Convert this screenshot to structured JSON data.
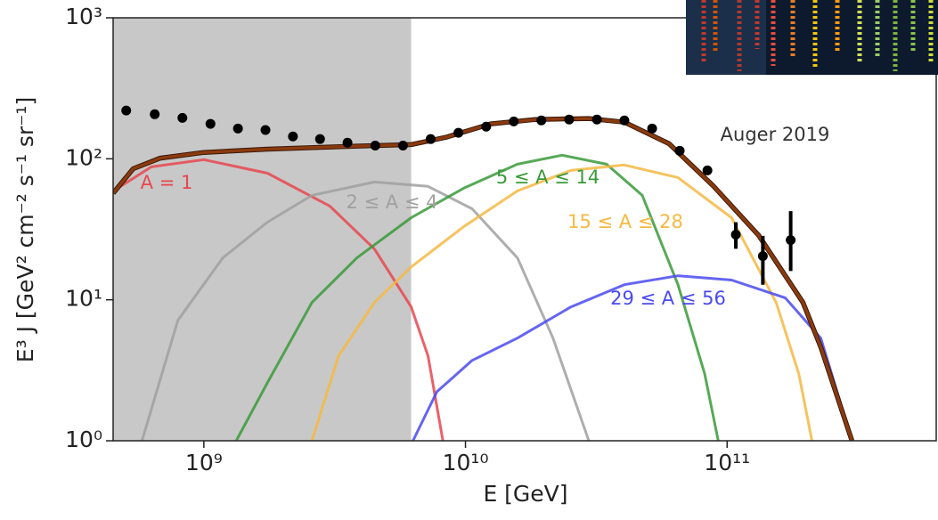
{
  "chart_data": {
    "type": "line",
    "xlabel": "E [GeV]",
    "ylabel": "E³ J [GeV² cm⁻² s⁻¹ sr⁻¹]",
    "log_x": true,
    "log_y": true,
    "xlim": [
      450000000,
      630000000000
    ],
    "ylim": [
      1,
      1000
    ],
    "xticks": [
      {
        "value": 1000000000,
        "label": "10⁹"
      },
      {
        "value": 10000000000,
        "label": "10¹⁰"
      },
      {
        "value": 100000000000,
        "label": "10¹¹"
      }
    ],
    "yticks": [
      {
        "value": 1,
        "label": "10⁰"
      },
      {
        "value": 10,
        "label": "10¹"
      },
      {
        "value": 100,
        "label": "10²"
      },
      {
        "value": 1000,
        "label": "10³"
      }
    ],
    "shaded_region": {
      "x": [
        450000000,
        6200000000
      ],
      "color": "#c8c8c8"
    },
    "series": [
      {
        "name": "A = 1",
        "type": "line",
        "color": "#e8474f",
        "x": [
          450000000,
          630000000,
          1000000000,
          1750000000,
          3030000000,
          4490000000,
          6200000000,
          7190000000,
          8200000000
        ],
        "values": [
          59,
          87.7,
          98.6,
          79,
          46.2,
          22.9,
          8.9,
          4,
          1
        ]
      },
      {
        "name": "2 ≤ A ≤ 4",
        "type": "line",
        "color": "#a0a0a0",
        "x": [
          580000000,
          796000000,
          1180000000,
          1750000000,
          2590000000,
          4490000000,
          7190000000,
          10600000000,
          15800000000,
          21600000000,
          29600000000
        ],
        "values": [
          1,
          7.15,
          19.8,
          35.5,
          55,
          68.4,
          63.7,
          44.2,
          19.8,
          5.35,
          1
        ]
      },
      {
        "name": "5 ≤ A ≤ 14",
        "type": "line",
        "color": "#3a9a3a",
        "x": [
          1330000000,
          1750000000,
          2590000000,
          3840000000,
          6200000000,
          9840000000,
          15800000000,
          23400000000,
          34600000000,
          47400000000,
          64900000000,
          82100000000,
          92500000000
        ],
        "values": [
          1,
          2.58,
          9.57,
          19.8,
          38.2,
          61.8,
          91.6,
          106,
          91.6,
          55,
          12.8,
          2.98,
          1
        ]
      },
      {
        "name": "15 ≤ A ≤ 28",
        "type": "line",
        "color": "#f5b942",
        "x": [
          2590000000,
          3270000000,
          4490000000,
          6200000000,
          9840000000,
          15800000000,
          25300000000,
          40500000000,
          64900000000,
          104000000000,
          154000000000,
          188000000000,
          211000000000
        ],
        "values": [
          1,
          4,
          9.57,
          17.1,
          33,
          59.2,
          82.7,
          90.3,
          73.6,
          38.2,
          9.57,
          2.98,
          1
        ]
      },
      {
        "name": "29 ≤ A ≤ 56",
        "type": "line",
        "color": "#4a4af0",
        "x": [
          6300000000,
          7780000000,
          10600000000,
          15800000000,
          25300000000,
          40500000000,
          64900000000,
          104000000000,
          167000000000,
          228000000000,
          300000000000
        ],
        "values": [
          1,
          2.23,
          3.71,
          5.35,
          8.9,
          12.8,
          14.8,
          13.8,
          10.3,
          5.35,
          1
        ]
      },
      {
        "type": "line",
        "color": "#8b3a0f",
        "x": [
          450000000,
          537000000,
          681000000,
          1000000000,
          1750000000,
          3840000000,
          6200000000,
          8410000000,
          12500000000,
          18500000000,
          29600000000,
          40500000000,
          60000000000,
          88900000000,
          132000000000,
          195000000000,
          228000000000,
          300000000000
        ],
        "values": [
          57,
          85,
          101,
          111,
          117,
          123,
          126,
          142,
          177,
          190,
          193,
          182,
          128,
          63.7,
          28.6,
          9.57,
          4.62,
          1
        ]
      },
      {
        "name": "Auger 2019",
        "type": "scatter",
        "color": "#000000",
        "x": [
          505000000,
          649000000,
          828000000,
          1060000000,
          1350000000,
          1720000000,
          2190000000,
          2780000000,
          3540000000,
          4520000000,
          5770000000,
          7360000000,
          9400000000,
          12000000000,
          15300000000,
          19500000000,
          24900000000,
          31800000000,
          40500000000,
          51700000000,
          65900000000,
          84100000000,
          108000000000,
          137000000000,
          175000000000
        ],
        "values": [
          220,
          207,
          195,
          177,
          164,
          160,
          144,
          138,
          130,
          124,
          124,
          138,
          153,
          169,
          184,
          187,
          190,
          190,
          187,
          164,
          114,
          82.7,
          29,
          20.4,
          26.5
        ],
        "error_minus": [
          null,
          null,
          null,
          null,
          null,
          null,
          null,
          null,
          null,
          null,
          null,
          null,
          null,
          null,
          null,
          null,
          null,
          null,
          null,
          null,
          null,
          null,
          6,
          7.6,
          10.5
        ],
        "error_plus": [
          null,
          null,
          null,
          null,
          null,
          null,
          null,
          null,
          null,
          null,
          null,
          null,
          null,
          null,
          null,
          null,
          null,
          null,
          null,
          null,
          null,
          null,
          6.5,
          8,
          16
        ]
      }
    ]
  }
}
